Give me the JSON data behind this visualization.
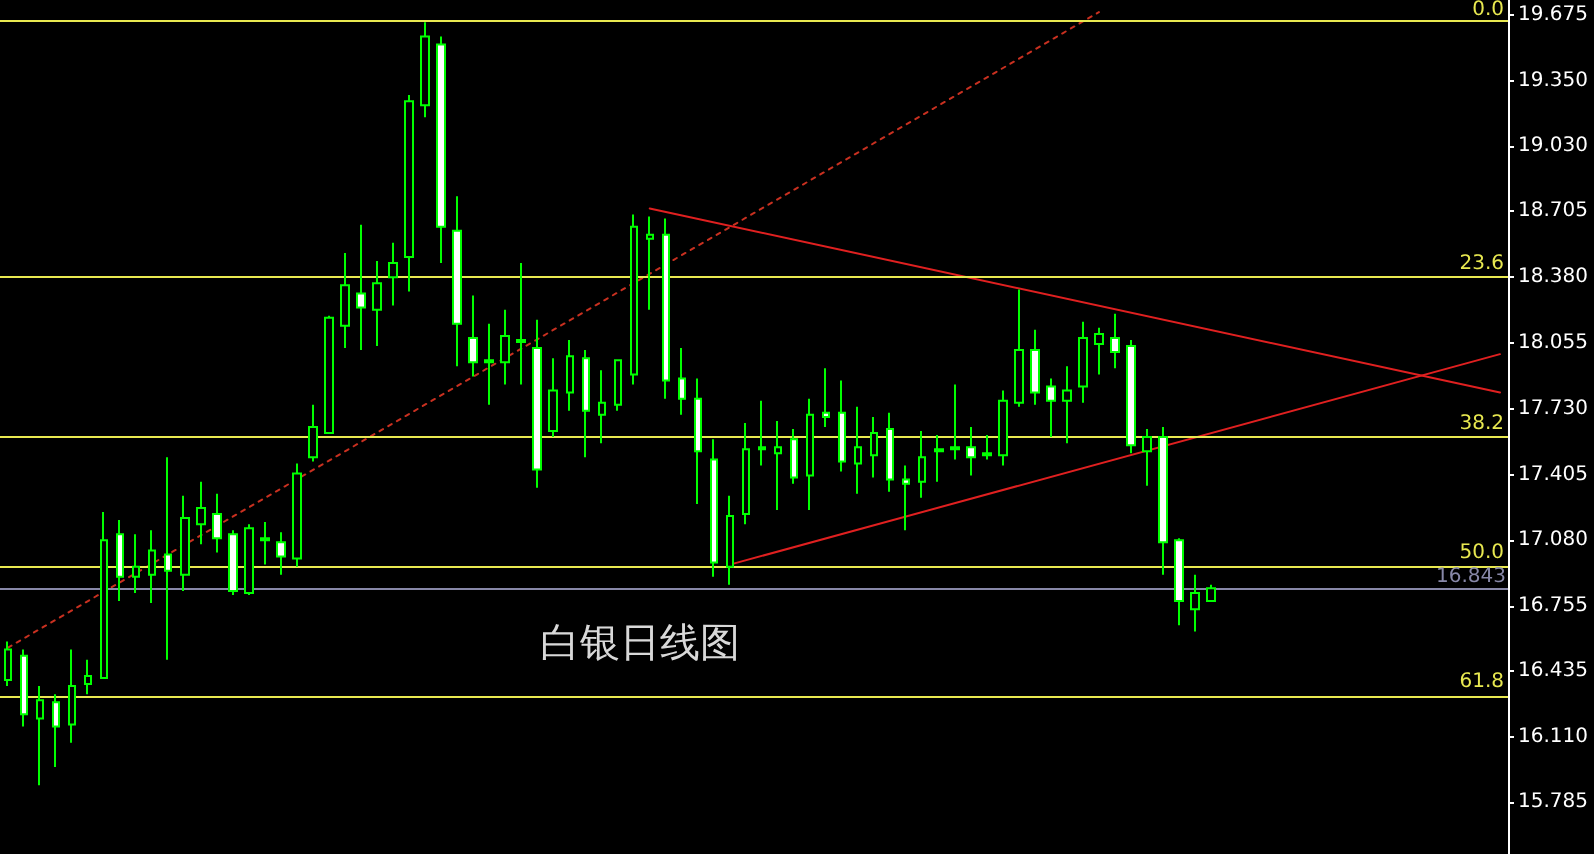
{
  "chart_data": {
    "type": "candlestick",
    "title": "白银日线图",
    "categories": [
      null,
      null,
      null,
      null,
      null,
      null,
      null,
      null,
      null,
      null,
      null,
      null,
      null,
      null,
      null,
      null,
      null,
      null,
      null,
      null,
      null,
      null,
      null,
      null,
      null,
      null,
      null,
      null,
      null,
      null,
      null,
      null,
      null,
      null,
      null,
      null,
      null,
      null,
      null,
      null,
      null,
      null,
      null,
      null,
      null,
      null,
      null,
      null,
      null,
      null,
      null,
      null,
      null,
      null,
      null,
      null,
      null,
      null,
      null,
      null,
      null,
      null,
      null,
      null,
      null,
      null,
      null,
      null,
      null,
      null,
      null,
      null,
      null,
      null,
      null,
      null,
      null,
      null,
      null,
      null,
      null,
      null,
      null,
      null,
      null,
      null,
      null,
      null,
      null,
      null,
      null,
      null,
      null,
      null
    ],
    "series": [
      {
        "type": "candlestick",
        "color": "#00ff00",
        "ohlc": [
          [
            16.39,
            16.58,
            16.36,
            16.54
          ],
          [
            16.51,
            16.54,
            16.16,
            16.22
          ],
          [
            16.2,
            16.36,
            15.87,
            16.29
          ],
          [
            16.28,
            16.32,
            15.96,
            16.16
          ],
          [
            16.17,
            16.54,
            16.08,
            16.36
          ],
          [
            16.37,
            16.49,
            16.32,
            16.41
          ],
          [
            16.4,
            17.22,
            16.4,
            17.08
          ],
          [
            17.11,
            17.18,
            16.78,
            16.9
          ],
          [
            16.9,
            17.11,
            16.82,
            16.95
          ],
          [
            16.91,
            17.13,
            16.77,
            17.03
          ],
          [
            17.01,
            17.49,
            16.49,
            16.93
          ],
          [
            16.91,
            17.3,
            16.83,
            17.19
          ],
          [
            17.16,
            17.37,
            17.06,
            17.24
          ],
          [
            17.21,
            17.31,
            17.02,
            17.09
          ],
          [
            17.11,
            17.13,
            16.81,
            16.83
          ],
          [
            16.82,
            17.16,
            16.81,
            17.14
          ],
          [
            17.08,
            17.17,
            16.96,
            17.09
          ],
          [
            17.07,
            17.12,
            16.91,
            17.0
          ],
          [
            16.99,
            17.46,
            16.95,
            17.41
          ],
          [
            17.49,
            17.75,
            17.47,
            17.64
          ],
          [
            17.61,
            18.19,
            17.61,
            18.18
          ],
          [
            18.14,
            18.5,
            18.03,
            18.34
          ],
          [
            18.3,
            18.64,
            18.02,
            18.23
          ],
          [
            18.22,
            18.46,
            18.04,
            18.35
          ],
          [
            18.38,
            18.55,
            18.24,
            18.45
          ],
          [
            18.48,
            19.28,
            18.31,
            19.25
          ],
          [
            19.23,
            19.64,
            19.17,
            19.57
          ],
          [
            19.53,
            19.57,
            18.45,
            18.63
          ],
          [
            18.61,
            18.78,
            17.94,
            18.15
          ],
          [
            18.08,
            18.29,
            17.89,
            17.96
          ],
          [
            17.97,
            18.15,
            17.75,
            17.96
          ],
          [
            17.96,
            18.22,
            17.85,
            18.09
          ],
          [
            18.06,
            18.45,
            17.85,
            18.07
          ],
          [
            18.03,
            18.17,
            17.34,
            17.43
          ],
          [
            17.62,
            17.98,
            17.59,
            17.82
          ],
          [
            17.81,
            18.07,
            17.72,
            17.99
          ],
          [
            17.98,
            18.02,
            17.49,
            17.72
          ],
          [
            17.7,
            17.92,
            17.56,
            17.76
          ],
          [
            17.75,
            17.97,
            17.72,
            17.97
          ],
          [
            17.9,
            18.69,
            17.85,
            18.63
          ],
          [
            18.57,
            18.68,
            18.22,
            18.59
          ],
          [
            18.59,
            18.67,
            17.78,
            17.87
          ],
          [
            17.88,
            18.03,
            17.7,
            17.78
          ],
          [
            17.78,
            17.88,
            17.26,
            17.52
          ],
          [
            17.48,
            17.58,
            16.9,
            16.97
          ],
          [
            16.95,
            17.3,
            16.86,
            17.2
          ],
          [
            17.21,
            17.66,
            17.16,
            17.53
          ],
          [
            17.53,
            17.77,
            17.45,
            17.54
          ],
          [
            17.51,
            17.67,
            17.23,
            17.54
          ],
          [
            17.58,
            17.63,
            17.36,
            17.39
          ],
          [
            17.4,
            17.78,
            17.23,
            17.7
          ],
          [
            17.71,
            17.93,
            17.64,
            17.69
          ],
          [
            17.71,
            17.87,
            17.42,
            17.47
          ],
          [
            17.46,
            17.74,
            17.31,
            17.54
          ],
          [
            17.5,
            17.69,
            17.39,
            17.61
          ],
          [
            17.63,
            17.71,
            17.32,
            17.38
          ],
          [
            17.38,
            17.45,
            17.13,
            17.36
          ],
          [
            17.37,
            17.62,
            17.29,
            17.49
          ],
          [
            17.52,
            17.6,
            17.37,
            17.53
          ],
          [
            17.53,
            17.85,
            17.48,
            17.54
          ],
          [
            17.54,
            17.64,
            17.4,
            17.49
          ],
          [
            17.5,
            17.6,
            17.48,
            17.51
          ],
          [
            17.5,
            17.82,
            17.45,
            17.77
          ],
          [
            17.76,
            18.32,
            17.74,
            18.02
          ],
          [
            18.02,
            18.12,
            17.75,
            17.81
          ],
          [
            17.84,
            17.88,
            17.59,
            17.77
          ],
          [
            17.77,
            17.94,
            17.56,
            17.82
          ],
          [
            17.84,
            18.16,
            17.76,
            18.08
          ],
          [
            18.05,
            18.13,
            17.9,
            18.1
          ],
          [
            18.08,
            18.2,
            17.93,
            18.01
          ],
          [
            18.04,
            18.07,
            17.51,
            17.55
          ],
          [
            17.52,
            17.63,
            17.35,
            17.59
          ],
          [
            17.59,
            17.64,
            16.91,
            17.07
          ],
          [
            17.08,
            17.09,
            16.66,
            16.78
          ],
          [
            16.74,
            16.91,
            16.63,
            16.82
          ],
          [
            16.78,
            16.86,
            16.78,
            16.843
          ],
          null,
          null,
          null,
          null,
          null,
          null,
          null,
          null,
          null,
          null,
          null,
          null,
          null,
          null,
          null,
          null,
          null,
          null
        ]
      },
      {
        "type": "line",
        "color": "#e02020",
        "line_style": "solid",
        "values": [
          null,
          null,
          null,
          null,
          null,
          null,
          null,
          null,
          null,
          null,
          null,
          null,
          null,
          null,
          null,
          null,
          null,
          null,
          null,
          null,
          null,
          null,
          null,
          null,
          null,
          null,
          null,
          null,
          null,
          null,
          null,
          null,
          null,
          null,
          null,
          null,
          null,
          null,
          null,
          null,
          18.72,
          null,
          null,
          null,
          null,
          null,
          null,
          null,
          null,
          null,
          null,
          null,
          null,
          null,
          null,
          null,
          null,
          null,
          null,
          null,
          null,
          null,
          null,
          null,
          null,
          null,
          null,
          null,
          null,
          null,
          null,
          null,
          null,
          null,
          null,
          null,
          null,
          null,
          null,
          null,
          null,
          null,
          null,
          null,
          null,
          null,
          null,
          null,
          null,
          null,
          null,
          null,
          null,
          17.81
        ]
      },
      {
        "type": "line",
        "color": "#e02020",
        "line_style": "solid",
        "values": [
          null,
          null,
          null,
          null,
          null,
          null,
          null,
          null,
          null,
          null,
          null,
          null,
          null,
          null,
          null,
          null,
          null,
          null,
          null,
          null,
          null,
          null,
          null,
          null,
          null,
          null,
          null,
          null,
          null,
          null,
          null,
          null,
          null,
          null,
          null,
          null,
          null,
          null,
          null,
          null,
          null,
          null,
          null,
          null,
          null,
          16.96,
          null,
          null,
          null,
          null,
          null,
          null,
          null,
          null,
          null,
          null,
          null,
          null,
          null,
          null,
          null,
          null,
          null,
          null,
          null,
          null,
          null,
          null,
          null,
          null,
          null,
          null,
          null,
          null,
          null,
          null,
          null,
          null,
          null,
          null,
          null,
          null,
          null,
          null,
          null,
          null,
          null,
          null,
          null,
          null,
          null,
          null,
          null,
          18.0
        ]
      },
      {
        "type": "line",
        "color": "#c83020",
        "line_style": "dotted",
        "values": [
          16.55,
          null,
          null,
          null,
          null,
          null,
          null,
          null,
          null,
          null,
          null,
          null,
          null,
          null,
          null,
          null,
          null,
          null,
          null,
          null,
          null,
          null,
          null,
          null,
          null,
          null,
          null,
          null,
          null,
          null,
          null,
          null,
          null,
          null,
          null,
          null,
          null,
          null,
          null,
          null,
          null,
          null,
          null,
          null,
          null,
          null,
          null,
          null,
          null,
          null,
          null,
          null,
          null,
          null,
          null,
          null,
          null,
          null,
          null,
          null,
          null,
          null,
          null,
          null,
          null,
          null,
          null,
          null,
          19.69,
          null,
          null,
          null,
          null,
          null,
          null,
          null,
          null,
          null,
          null,
          null,
          null,
          null,
          null,
          null,
          null,
          null,
          null,
          null,
          null,
          null,
          null,
          null,
          null,
          null
        ]
      }
    ],
    "ylim": [
      15.53,
      19.75
    ],
    "yticks": [
      15.785,
      {
        "value": 16.11,
        "label": "16.110"
      },
      16.435,
      16.755,
      {
        "value": 17.08,
        "label": "17.080"
      },
      17.405,
      {
        "value": 17.73,
        "label": "17.730"
      },
      18.055,
      {
        "value": 18.38,
        "label": "18.380"
      },
      18.705,
      {
        "value": 19.03,
        "label": "19.030"
      },
      {
        "value": 19.35,
        "label": "19.350"
      },
      19.675
    ],
    "annotations": [
      {
        "text": "0.0",
        "y": 19.652
      },
      {
        "text": "23.6",
        "y": 18.375
      },
      {
        "text": "38.2",
        "y": 17.585
      },
      {
        "text": "50.0",
        "y": 16.947
      },
      {
        "text": "61.8",
        "y": 16.309
      }
    ],
    "ref_lines": [
      {
        "axis": "y",
        "value": 19.652,
        "color": "#e8e850"
      },
      {
        "axis": "y",
        "value": 18.375,
        "color": "#e8e850"
      },
      {
        "axis": "y",
        "value": 17.585,
        "color": "#e8e850"
      },
      {
        "axis": "y",
        "value": 16.947,
        "color": "#e8e850"
      },
      {
        "axis": "y",
        "value": 16.309,
        "color": "#e8e850"
      },
      {
        "axis": "y",
        "value": 16.843,
        "label": "16.843",
        "color": "#8888a8"
      }
    ],
    "grid": false,
    "marker": "none",
    "tick_labels": "y"
  }
}
